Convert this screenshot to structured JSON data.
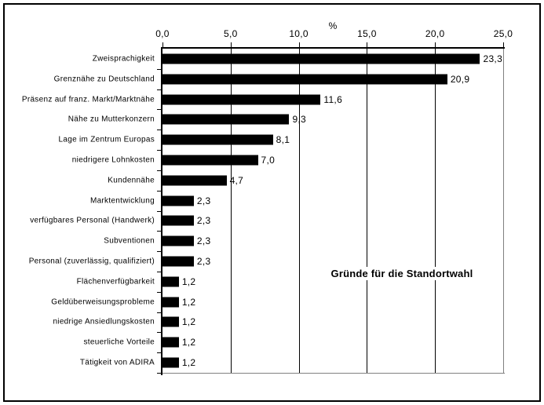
{
  "chart_data": {
    "type": "bar",
    "orientation": "horizontal",
    "title": "Gründe für die Standortwahl",
    "xlabel": "%",
    "xlim": [
      0,
      25
    ],
    "x_ticks": [
      0,
      5,
      10,
      15,
      20,
      25
    ],
    "x_tick_labels": [
      "0,0",
      "5,0",
      "10,0",
      "15,0",
      "20,0",
      "25,0"
    ],
    "grid": true,
    "legend": false,
    "bar_color": "#000000",
    "categories": [
      "Zweisprachigkeit",
      "Grenznähe zu Deutschland",
      "Präsenz auf franz. Markt/Marktnähe",
      "Nähe zu Mutterkonzern",
      "Lage im Zentrum Europas",
      "niedrigere Lohnkosten",
      "Kundennähe",
      "Marktentwicklung",
      "verfügbares Personal (Handwerk)",
      "Subventionen",
      "Personal (zuverlässig, qualifiziert)",
      "Flächenverfügbarkeit",
      "Geldüberweisungsprobleme",
      "niedrige Ansiedlungskosten",
      "steuerliche Vorteile",
      "Tätigkeit von ADIRA"
    ],
    "values": [
      23.3,
      20.9,
      11.6,
      9.3,
      8.1,
      7.0,
      4.7,
      2.3,
      2.3,
      2.3,
      2.3,
      1.2,
      1.2,
      1.2,
      1.2,
      1.2
    ],
    "value_labels": [
      "23,3",
      "20,9",
      "11,6",
      "9,3",
      "8,1",
      "7,0",
      "4,7",
      "2,3",
      "2,3",
      "2,3",
      "2,3",
      "1,2",
      "1,2",
      "1,2",
      "1,2",
      "1,2"
    ]
  }
}
